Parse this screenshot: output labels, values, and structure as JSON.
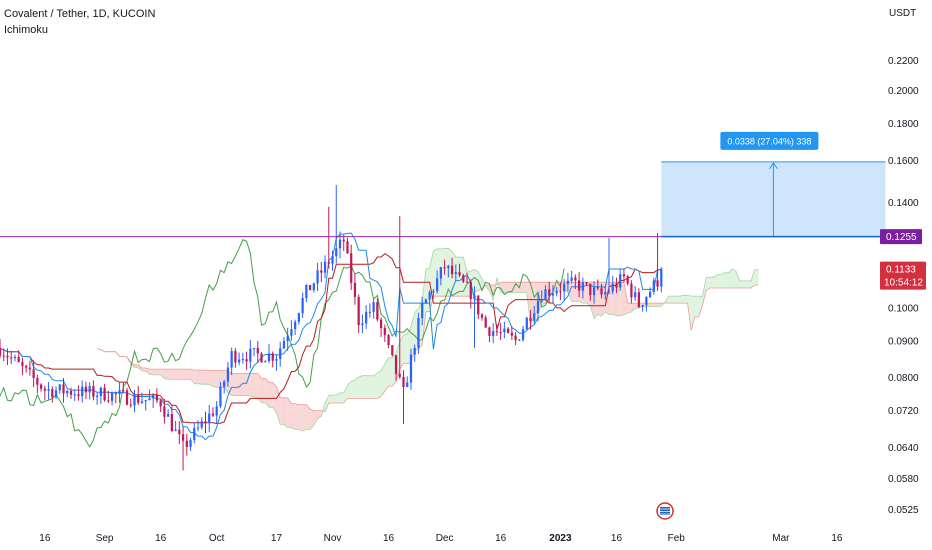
{
  "header": {
    "title": "Covalent / Tether, 1D, KUCOIN",
    "indicator": "Ichimoku",
    "currency": "USDT"
  },
  "colors": {
    "up": "#2962ff",
    "down": "#c2185b",
    "resistance": "#9c27b0",
    "lagging": "#43a047",
    "base": "#b71c1c",
    "conversion": "#1e88e5",
    "cloud_bear": "#f8d7d6",
    "cloud_bull": "#dff3df",
    "measure_fill": "#cfe5fb",
    "measure_stroke": "#2196f3",
    "last_price_bg": "#d32f3f",
    "level_tag_bg": "#7b1fa2"
  },
  "chart_data": {
    "type": "candlestick",
    "title": "Covalent / Tether, 1D, KUCOIN",
    "indicator": "Ichimoku",
    "y_scale": "log",
    "ylim": [
      0.05,
      0.235
    ],
    "xlim": [
      "2022-08-04",
      "2023-03-27"
    ],
    "y_ticks": [
      "0.2200",
      "0.2000",
      "0.1800",
      "0.1600",
      "0.1400",
      "0.1255",
      "0.1133",
      "0.1000",
      "0.0900",
      "0.0800",
      "0.0720",
      "0.0640",
      "0.0580",
      "0.0525"
    ],
    "x_ticks": [
      {
        "label": "16",
        "date": "2022-08-16"
      },
      {
        "label": "Sep",
        "date": "2022-09-01"
      },
      {
        "label": "16",
        "date": "2022-09-16"
      },
      {
        "label": "Oct",
        "date": "2022-10-01"
      },
      {
        "label": "17",
        "date": "2022-10-17"
      },
      {
        "label": "Nov",
        "date": "2022-11-01"
      },
      {
        "label": "16",
        "date": "2022-11-16"
      },
      {
        "label": "Dec",
        "date": "2022-12-01"
      },
      {
        "label": "16",
        "date": "2022-12-16"
      },
      {
        "label": "2023",
        "date": "2023-01-01",
        "bold": true
      },
      {
        "label": "16",
        "date": "2023-01-16"
      },
      {
        "label": "Feb",
        "date": "2023-02-01"
      },
      {
        "label": "Mar",
        "date": "2023-03-01"
      },
      {
        "label": "16",
        "date": "2023-03-16"
      }
    ],
    "resistance_level": 0.1255,
    "last_price": {
      "value": "0.1133",
      "countdown": "10:54:12"
    },
    "measure": {
      "label": "0.0338 (27.04%) 338",
      "from_date": "2023-01-28",
      "to_date": "2023-03-29",
      "from_price": 0.1255,
      "to_price": 0.1593
    },
    "anchor_points": [
      {
        "date": "2022-08-04",
        "price": 0.088
      },
      {
        "date": "2022-08-16",
        "price": 0.077
      },
      {
        "date": "2022-09-01",
        "price": 0.076
      },
      {
        "date": "2022-09-16",
        "price": 0.074
      },
      {
        "date": "2022-09-22",
        "price": 0.064
      },
      {
        "date": "2022-10-01",
        "price": 0.073
      },
      {
        "date": "2022-10-05",
        "price": 0.086
      },
      {
        "date": "2022-10-17",
        "price": 0.086
      },
      {
        "date": "2022-10-25",
        "price": 0.105
      },
      {
        "date": "2022-11-04",
        "price": 0.124
      },
      {
        "date": "2022-11-08",
        "price": 0.096
      },
      {
        "date": "2022-11-12",
        "price": 0.1
      },
      {
        "date": "2022-11-20",
        "price": 0.076
      },
      {
        "date": "2022-11-25",
        "price": 0.1
      },
      {
        "date": "2022-12-01",
        "price": 0.114
      },
      {
        "date": "2022-12-08",
        "price": 0.105
      },
      {
        "date": "2022-12-12",
        "price": 0.094
      },
      {
        "date": "2022-12-20",
        "price": 0.09
      },
      {
        "date": "2022-12-27",
        "price": 0.105
      },
      {
        "date": "2023-01-05",
        "price": 0.108
      },
      {
        "date": "2023-01-12",
        "price": 0.104
      },
      {
        "date": "2023-01-18",
        "price": 0.11
      },
      {
        "date": "2023-01-22",
        "price": 0.101
      },
      {
        "date": "2023-01-27",
        "price": 0.109
      },
      {
        "date": "2023-01-28",
        "price": 0.1133
      }
    ]
  }
}
